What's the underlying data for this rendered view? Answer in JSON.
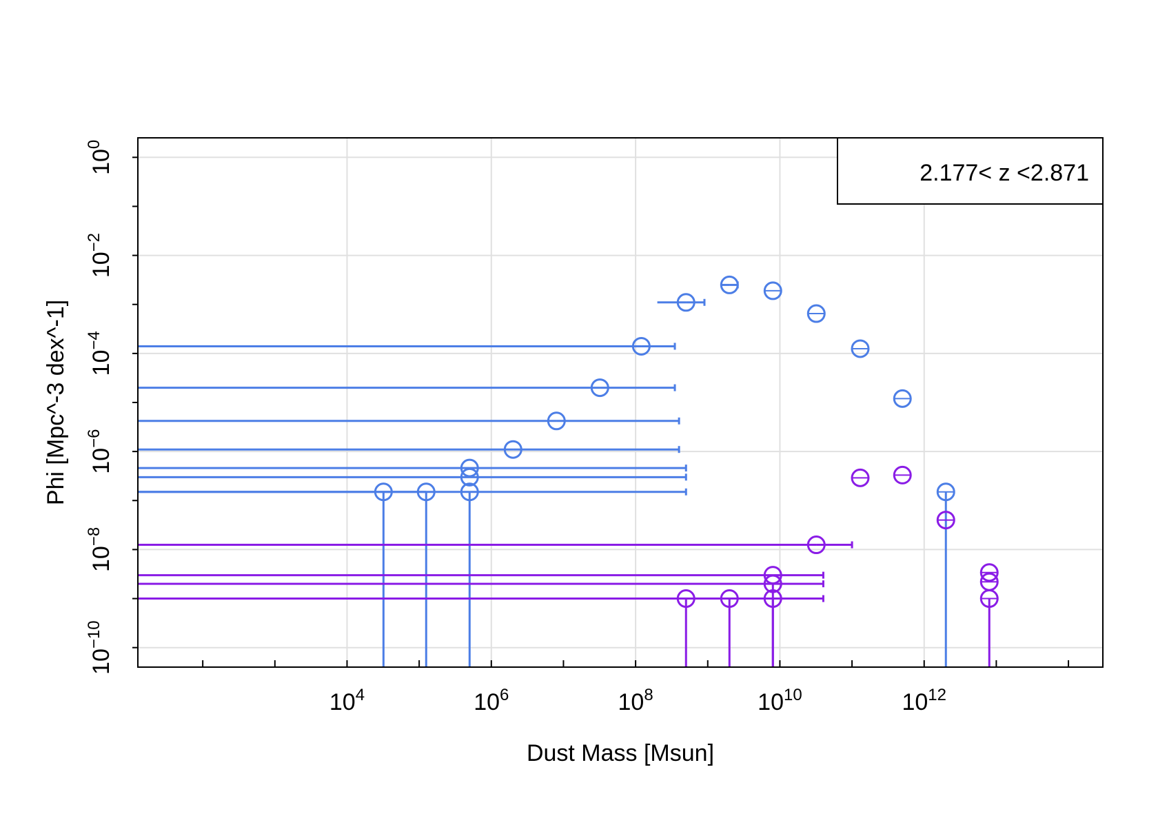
{
  "chart_data": {
    "type": "scatter",
    "title": "",
    "xlabel": "Dust Mass [Msun]",
    "ylabel": "Phi [Mpc^-3 dex^-1]",
    "x_scale": "log",
    "y_scale": "log",
    "xlim": [
      12.6,
      300000000000000.0
    ],
    "ylim": [
      4e-11,
      2.5
    ],
    "x_tick_exponents": [
      4,
      6,
      8,
      10,
      12
    ],
    "y_tick_exponents": [
      0,
      -2,
      -4,
      -6,
      -8,
      -10
    ],
    "grid": true,
    "legend": {
      "text": "2.177< z <2.871",
      "position": "top-right"
    },
    "colors": {
      "blue": "#4c7ee6",
      "purple": "#8a1ce6",
      "grid": "#e0e0e0",
      "axis": "#000000"
    },
    "series": [
      {
        "color": "#4c7ee6",
        "points": [
          {
            "x": 120000000.0,
            "y": 0.00014,
            "xlo": 12.6,
            "xhi": 350000000.0
          },
          {
            "x": 500000000.0,
            "y": 0.0011,
            "xlo": 200000000.0,
            "xhi": 900000000.0
          },
          {
            "x": 2000000000.0,
            "y": 0.0025,
            "xlo": 1500000000.0,
            "xhi": 2600000000.0
          },
          {
            "x": 8000000000.0,
            "y": 0.0019
          },
          {
            "x": 32000000000.0,
            "y": 0.00065
          },
          {
            "x": 130000000000.0,
            "y": 0.000125
          },
          {
            "x": 500000000000.0,
            "y": 1.2e-05
          },
          {
            "x": 32000000.0,
            "y": 2e-05,
            "xlo": 12.6,
            "xhi": 350000000.0
          },
          {
            "x": 8000000.0,
            "y": 4.2e-06,
            "xlo": 12.6,
            "xhi": 400000000.0
          },
          {
            "x": 2000000.0,
            "y": 1.1e-06,
            "xlo": 12.6,
            "xhi": 400000000.0
          },
          {
            "x": 500000.0,
            "y": 4.6e-07,
            "xlo": 12.6,
            "xhi": 500000000.0
          },
          {
            "x": 500000.0,
            "y": 3e-07,
            "xlo": 12.6,
            "xhi": 500000000.0
          },
          {
            "x": 500000.0,
            "y": 1.5e-07,
            "xlo": 12.6,
            "xhi": 500000000.0,
            "ylo": 4e-11
          },
          {
            "x": 125000.0,
            "y": 1.5e-07,
            "xlo": 12.6,
            "ylo": 4e-11
          },
          {
            "x": 32000.0,
            "y": 1.5e-07,
            "ylo": 4e-11
          },
          {
            "x": 2000000000000.0,
            "y": 1.5e-07,
            "ylo": 4e-11
          }
        ]
      },
      {
        "color": "#8a1ce6",
        "points": [
          {
            "x": 130000000000.0,
            "y": 2.9e-07
          },
          {
            "x": 500000000000.0,
            "y": 3.3e-07
          },
          {
            "x": 2000000000000.0,
            "y": 4e-08
          },
          {
            "x": 32000000000.0,
            "y": 1.25e-08,
            "xlo": 12.6,
            "xhi": 100000000000.0
          },
          {
            "x": 8000000000000.0,
            "y": 3.4e-09
          },
          {
            "x": 8000000000000.0,
            "y": 2.2e-09
          },
          {
            "x": 8000000000000.0,
            "y": 1e-09,
            "ylo": 4e-11
          },
          {
            "x": 8000000000.0,
            "y": 3e-09,
            "xlo": 12.6,
            "xhi": 40000000000.0
          },
          {
            "x": 8000000000.0,
            "y": 2e-09,
            "xlo": 12.6,
            "xhi": 40000000000.0,
            "ylo": 4e-11
          },
          {
            "x": 8000000000.0,
            "y": 1e-09,
            "xlo": 12.6,
            "xhi": 40000000000.0,
            "ylo": 4e-11
          },
          {
            "x": 2000000000.0,
            "y": 1e-09,
            "ylo": 4e-11
          },
          {
            "x": 500000000.0,
            "y": 1e-09,
            "ylo": 4e-11
          }
        ]
      }
    ]
  }
}
